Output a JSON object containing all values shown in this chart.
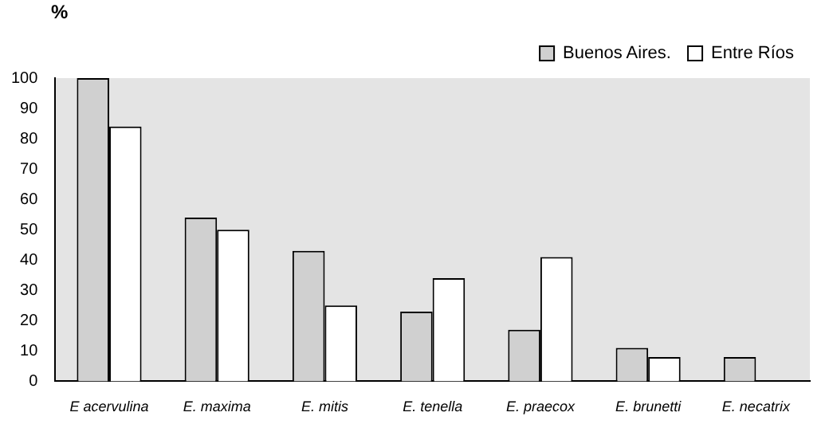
{
  "chart_data": {
    "type": "bar",
    "ylabel": "%",
    "categories": [
      "E acervulina",
      "E. maxima",
      "E. mitis",
      "E. tenella",
      "E. praecox",
      "E. brunetti",
      "E. necatrix"
    ],
    "series": [
      {
        "name": "Buenos Aires.",
        "color": "#d0d0d0",
        "values": [
          100,
          54,
          43,
          23,
          17,
          11,
          8
        ]
      },
      {
        "name": "Entre Ríos",
        "color": "#ffffff",
        "values": [
          84,
          50,
          25,
          34,
          41,
          8,
          0
        ]
      }
    ],
    "ylim": [
      0,
      100
    ],
    "yticks": [
      0,
      10,
      20,
      30,
      40,
      50,
      60,
      70,
      80,
      90,
      100
    ],
    "grid": false,
    "legend": "top right"
  }
}
